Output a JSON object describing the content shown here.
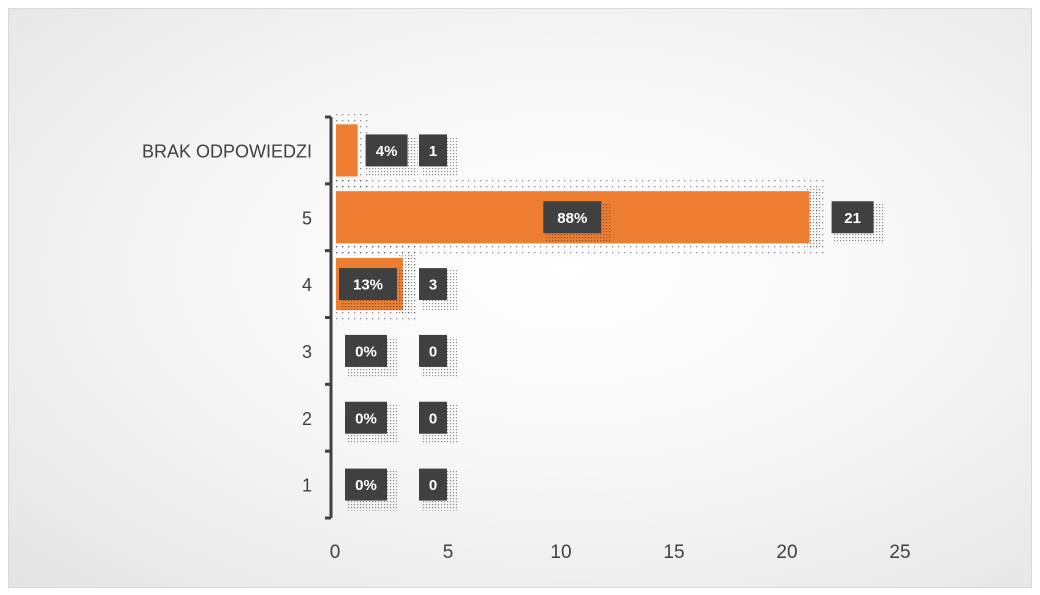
{
  "chart_data": {
    "type": "bar",
    "orientation": "horizontal",
    "title": "",
    "xlabel": "",
    "ylabel": "",
    "categories": [
      "1",
      "2",
      "3",
      "4",
      "5",
      "BRAK ODPOWIEDZI"
    ],
    "values": [
      0,
      0,
      0,
      3,
      21,
      1
    ],
    "percent_labels": [
      "0%",
      "0%",
      "0%",
      "13%",
      "88%",
      "4%"
    ],
    "count_labels": [
      "0",
      "0",
      "0",
      "3",
      "21",
      "1"
    ],
    "xlim": [
      0,
      25
    ],
    "xticks": [
      0,
      5,
      10,
      15,
      20,
      25
    ],
    "grid": "vertical",
    "legend": "none",
    "colors": {
      "bar": "#ED7D31",
      "label_box": "#404040",
      "label_text": "#FFFFFF",
      "axis": "#404040",
      "gridline": "#404040"
    }
  }
}
